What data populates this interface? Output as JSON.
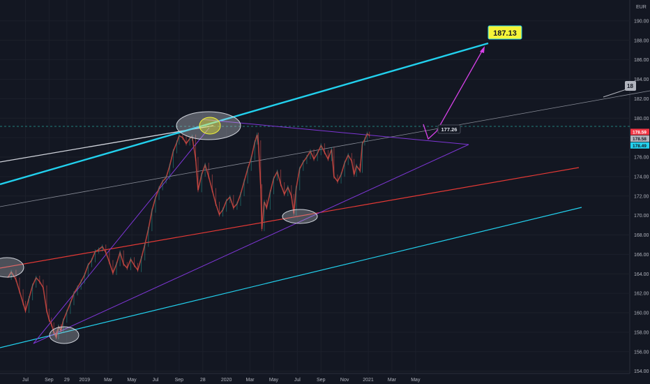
{
  "chart_data": {
    "type": "line",
    "currency": "EUR",
    "ylim": [
      153.4,
      192.0
    ],
    "y_ticks": [
      154.0,
      156.0,
      158.0,
      160.0,
      162.0,
      164.0,
      166.0,
      168.0,
      170.0,
      172.0,
      174.0,
      176.0,
      178.0,
      180.0,
      182.0,
      184.0,
      186.0,
      188.0,
      190.0
    ],
    "x_ticks": [
      "Jul",
      "Sep",
      "29",
      "2019",
      "Mar",
      "May",
      "Jul",
      "Sep",
      "28",
      "2020",
      "Mar",
      "May",
      "Jul",
      "Sep",
      "Nov",
      "2021",
      "Mar",
      "May"
    ],
    "x_tick_times": [
      0,
      2,
      3.5,
      5,
      7,
      9,
      11,
      13,
      15,
      17,
      19,
      21,
      23,
      25,
      27,
      29,
      31,
      33
    ],
    "series": [
      {
        "values": [
          [
            -1.5,
            163.6
          ],
          [
            -1.2,
            164.2
          ],
          [
            -0.8,
            163.4
          ],
          [
            -0.5,
            162.2
          ],
          [
            -0.2,
            161.0
          ],
          [
            0,
            160.2
          ],
          [
            0.3,
            161.5
          ],
          [
            0.6,
            162.8
          ],
          [
            0.9,
            163.6
          ],
          [
            1.2,
            163.2
          ],
          [
            1.5,
            162.6
          ],
          [
            1.8,
            160.2
          ],
          [
            2.0,
            159.3
          ],
          [
            2.2,
            158.8
          ],
          [
            2.4,
            158.0
          ],
          [
            2.6,
            157.5
          ],
          [
            2.8,
            158.6
          ],
          [
            3.0,
            158.2
          ],
          [
            3.2,
            159.2
          ],
          [
            3.5,
            160.1
          ],
          [
            3.8,
            161.0
          ],
          [
            4.1,
            162.0
          ],
          [
            4.4,
            162.6
          ],
          [
            4.7,
            163.2
          ],
          [
            5.0,
            163.9
          ],
          [
            5.3,
            164.9
          ],
          [
            5.6,
            165.4
          ],
          [
            5.9,
            166.3
          ],
          [
            6.2,
            166.5
          ],
          [
            6.5,
            166.8
          ],
          [
            6.8,
            166.2
          ],
          [
            7.1,
            165.2
          ],
          [
            7.4,
            164.1
          ],
          [
            7.7,
            165.0
          ],
          [
            8.0,
            166.2
          ],
          [
            8.3,
            165.0
          ],
          [
            8.6,
            164.6
          ],
          [
            8.9,
            165.5
          ],
          [
            9.2,
            164.9
          ],
          [
            9.5,
            164.4
          ],
          [
            9.8,
            165.6
          ],
          [
            10.1,
            167.0
          ],
          [
            10.4,
            168.6
          ],
          [
            10.7,
            170.5
          ],
          [
            11.0,
            171.8
          ],
          [
            11.3,
            172.8
          ],
          [
            11.6,
            173.5
          ],
          [
            11.9,
            173.9
          ],
          [
            12.2,
            175.1
          ],
          [
            12.5,
            176.6
          ],
          [
            12.8,
            177.5
          ],
          [
            13.0,
            178.2
          ],
          [
            13.3,
            178.0
          ],
          [
            13.6,
            177.4
          ],
          [
            13.9,
            177.9
          ],
          [
            14.1,
            178.1
          ],
          [
            14.4,
            175.8
          ],
          [
            14.6,
            172.6
          ],
          [
            14.9,
            174.2
          ],
          [
            15.2,
            175.2
          ],
          [
            15.5,
            174.0
          ],
          [
            15.8,
            172.6
          ],
          [
            16.1,
            171.2
          ],
          [
            16.4,
            170.1
          ],
          [
            16.7,
            170.6
          ],
          [
            17.0,
            171.5
          ],
          [
            17.3,
            171.9
          ],
          [
            17.6,
            170.8
          ],
          [
            17.9,
            171.2
          ],
          [
            18.2,
            172.2
          ],
          [
            18.5,
            173.5
          ],
          [
            18.8,
            174.8
          ],
          [
            19.1,
            175.9
          ],
          [
            19.4,
            177.5
          ],
          [
            19.6,
            178.3
          ],
          [
            19.7,
            177.5
          ],
          [
            19.9,
            173.0
          ],
          [
            20.0,
            168.6
          ],
          [
            20.2,
            171.4
          ],
          [
            20.4,
            170.8
          ],
          [
            20.7,
            172.4
          ],
          [
            21.0,
            173.8
          ],
          [
            21.3,
            174.5
          ],
          [
            21.6,
            173.2
          ],
          [
            21.9,
            172.2
          ],
          [
            22.2,
            172.9
          ],
          [
            22.5,
            172.0
          ],
          [
            22.7,
            170.2
          ],
          [
            22.9,
            172.8
          ],
          [
            23.2,
            174.8
          ],
          [
            23.5,
            175.5
          ],
          [
            23.8,
            176.0
          ],
          [
            24.1,
            176.6
          ],
          [
            24.4,
            175.8
          ],
          [
            24.7,
            176.4
          ],
          [
            25.0,
            177.2
          ],
          [
            25.3,
            176.5
          ],
          [
            25.6,
            175.8
          ],
          [
            25.9,
            176.8
          ],
          [
            26.1,
            174.0
          ],
          [
            26.4,
            173.5
          ],
          [
            26.7,
            174.2
          ],
          [
            27.0,
            175.4
          ],
          [
            27.3,
            176.2
          ],
          [
            27.6,
            175.6
          ],
          [
            27.8,
            174.2
          ],
          [
            28.0,
            175.1
          ],
          [
            28.3,
            174.6
          ],
          [
            28.5,
            177.4
          ],
          [
            28.7,
            177.8
          ],
          [
            28.9,
            178.4
          ],
          [
            29.1,
            178.2
          ]
        ]
      }
    ],
    "price_tags": [
      {
        "value": "178.59",
        "price": 178.59,
        "bg": "#f23645",
        "fg": "#ffffff"
      },
      {
        "value": "178.58",
        "price": 177.9,
        "bg": "#b2b5be",
        "fg": "#131722"
      },
      {
        "value": "178.49",
        "price": 177.2,
        "bg": "#22d1ee",
        "fg": "#131722"
      }
    ],
    "annotations": {
      "target_label": "187.13",
      "level_label": "177.26",
      "edge_label": "18"
    },
    "colors": {
      "background": "#131722",
      "candles": "#b0403b",
      "cyan_line": "#22d1ee",
      "red_line": "#e53935",
      "purple": "#7e36d6",
      "magenta_arrow": "#d641e8",
      "target_bg": "#f5f538",
      "dashed_level": "#26a69a"
    }
  }
}
